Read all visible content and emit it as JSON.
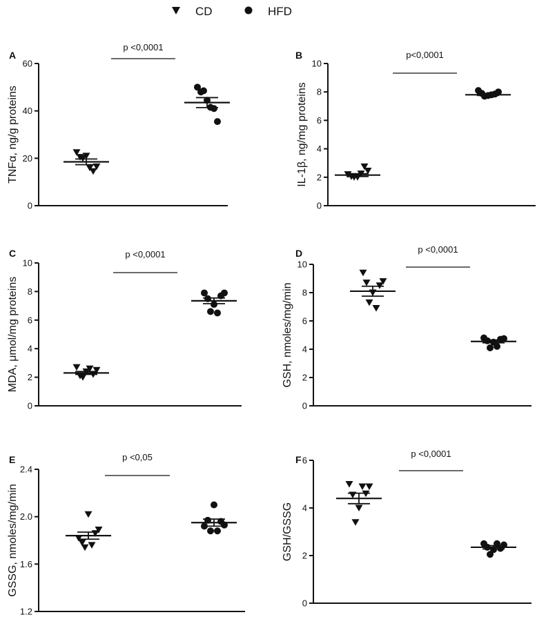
{
  "legend": {
    "items": [
      {
        "label": "CD",
        "marker": "triangle-down-icon"
      },
      {
        "label": "HFD",
        "marker": "circle-icon"
      }
    ]
  },
  "colors": {
    "ink": "#111111",
    "background": "#ffffff"
  },
  "chart_data": [
    {
      "type": "scatter",
      "panel": "A",
      "ylabel": "TNFα, ng/g proteins",
      "ylim": [
        0,
        60
      ],
      "yticks": [
        0,
        20,
        40,
        60
      ],
      "ytick_labels": [
        "0",
        "20",
        "40",
        "60"
      ],
      "annotation": "p <0,0001",
      "series": [
        {
          "name": "CD",
          "marker": "triangle-down",
          "mean": 18.5,
          "sem": 1.2,
          "values": [
            22.5,
            20.5,
            20.0,
            21.0,
            16.0,
            14.5,
            16.5
          ]
        },
        {
          "name": "HFD",
          "marker": "circle",
          "mean": 43.5,
          "sem": 2.1,
          "values": [
            50.0,
            48.0,
            48.5,
            44.5,
            41.5,
            41.0,
            35.5
          ]
        }
      ]
    },
    {
      "type": "scatter",
      "panel": "B",
      "ylabel": "IL-1β, ng/mg proteins",
      "ylim": [
        0,
        10
      ],
      "yticks": [
        0,
        2,
        4,
        6,
        8,
        10
      ],
      "ytick_labels": [
        "0",
        "2",
        "4",
        "6",
        "8",
        "10"
      ],
      "annotation": "p<0,0001",
      "series": [
        {
          "name": "CD",
          "marker": "triangle-down",
          "mean": 2.15,
          "sem": 0.1,
          "values": [
            2.2,
            2.05,
            2.0,
            2.0,
            2.25,
            2.75,
            2.45
          ]
        },
        {
          "name": "HFD",
          "marker": "circle",
          "mean": 7.8,
          "sem": 0.05,
          "values": [
            8.1,
            7.9,
            7.7,
            7.75,
            7.8,
            7.85,
            8.0
          ]
        }
      ]
    },
    {
      "type": "scatter",
      "panel": "C",
      "ylabel": "MDA, μmol/mg proteins",
      "ylim": [
        0,
        10
      ],
      "yticks": [
        0,
        2,
        4,
        6,
        8,
        10
      ],
      "ytick_labels": [
        "0",
        "2",
        "4",
        "6",
        "8",
        "10"
      ],
      "annotation": "p <0,0001",
      "series": [
        {
          "name": "CD",
          "marker": "triangle-down",
          "mean": 2.3,
          "sem": 0.1,
          "values": [
            2.7,
            2.1,
            2.0,
            2.4,
            2.6,
            2.2,
            2.5
          ]
        },
        {
          "name": "HFD",
          "marker": "circle",
          "mean": 7.35,
          "sem": 0.2,
          "values": [
            7.9,
            7.5,
            6.6,
            7.1,
            6.5,
            7.7,
            7.9
          ]
        }
      ]
    },
    {
      "type": "scatter",
      "panel": "D",
      "ylabel": "GSH, nmoles/mg/min",
      "ylim": [
        0,
        10
      ],
      "yticks": [
        0,
        2,
        4,
        6,
        8,
        10
      ],
      "ytick_labels": [
        "0",
        "2",
        "4",
        "6",
        "8",
        "10"
      ],
      "annotation": "p <0,0001",
      "series": [
        {
          "name": "CD",
          "marker": "triangle-down",
          "mean": 8.1,
          "sem": 0.35,
          "values": [
            9.4,
            8.7,
            7.3,
            8.0,
            6.9,
            8.5,
            8.8
          ]
        },
        {
          "name": "HFD",
          "marker": "circle",
          "mean": 4.55,
          "sem": 0.1,
          "values": [
            4.8,
            4.6,
            4.1,
            4.5,
            4.2,
            4.7,
            4.75
          ]
        }
      ]
    },
    {
      "type": "scatter",
      "panel": "E",
      "ylabel": "GSSG, nmoles/mg/min",
      "ylim": [
        1.2,
        2.4
      ],
      "yticks": [
        1.2,
        1.6,
        2.0,
        2.4
      ],
      "ytick_labels": [
        "1.2",
        "1.6",
        "2.0",
        "2.4"
      ],
      "annotation": "p <0,05",
      "series": [
        {
          "name": "CD",
          "marker": "triangle-down",
          "mean": 1.84,
          "sem": 0.03,
          "values": [
            1.82,
            1.78,
            1.74,
            2.02,
            1.76,
            1.86,
            1.89
          ]
        },
        {
          "name": "HFD",
          "marker": "circle",
          "mean": 1.95,
          "sem": 0.03,
          "values": [
            1.92,
            1.97,
            1.88,
            2.1,
            1.88,
            1.96,
            1.93
          ]
        }
      ]
    },
    {
      "type": "scatter",
      "panel": "F",
      "ylabel": "GSH/GSSG",
      "ylim": [
        0,
        6
      ],
      "yticks": [
        0,
        2,
        4,
        6
      ],
      "ytick_labels": [
        "0",
        "2",
        "4",
        "6"
      ],
      "annotation": "p <0,0001",
      "series": [
        {
          "name": "CD",
          "marker": "triangle-down",
          "mean": 4.4,
          "sem": 0.22,
          "values": [
            5.0,
            4.55,
            3.4,
            4.0,
            4.9,
            4.6,
            4.9
          ]
        },
        {
          "name": "HFD",
          "marker": "circle",
          "mean": 2.35,
          "sem": 0.07,
          "values": [
            2.5,
            2.35,
            2.05,
            2.25,
            2.5,
            2.3,
            2.45
          ]
        }
      ]
    }
  ]
}
